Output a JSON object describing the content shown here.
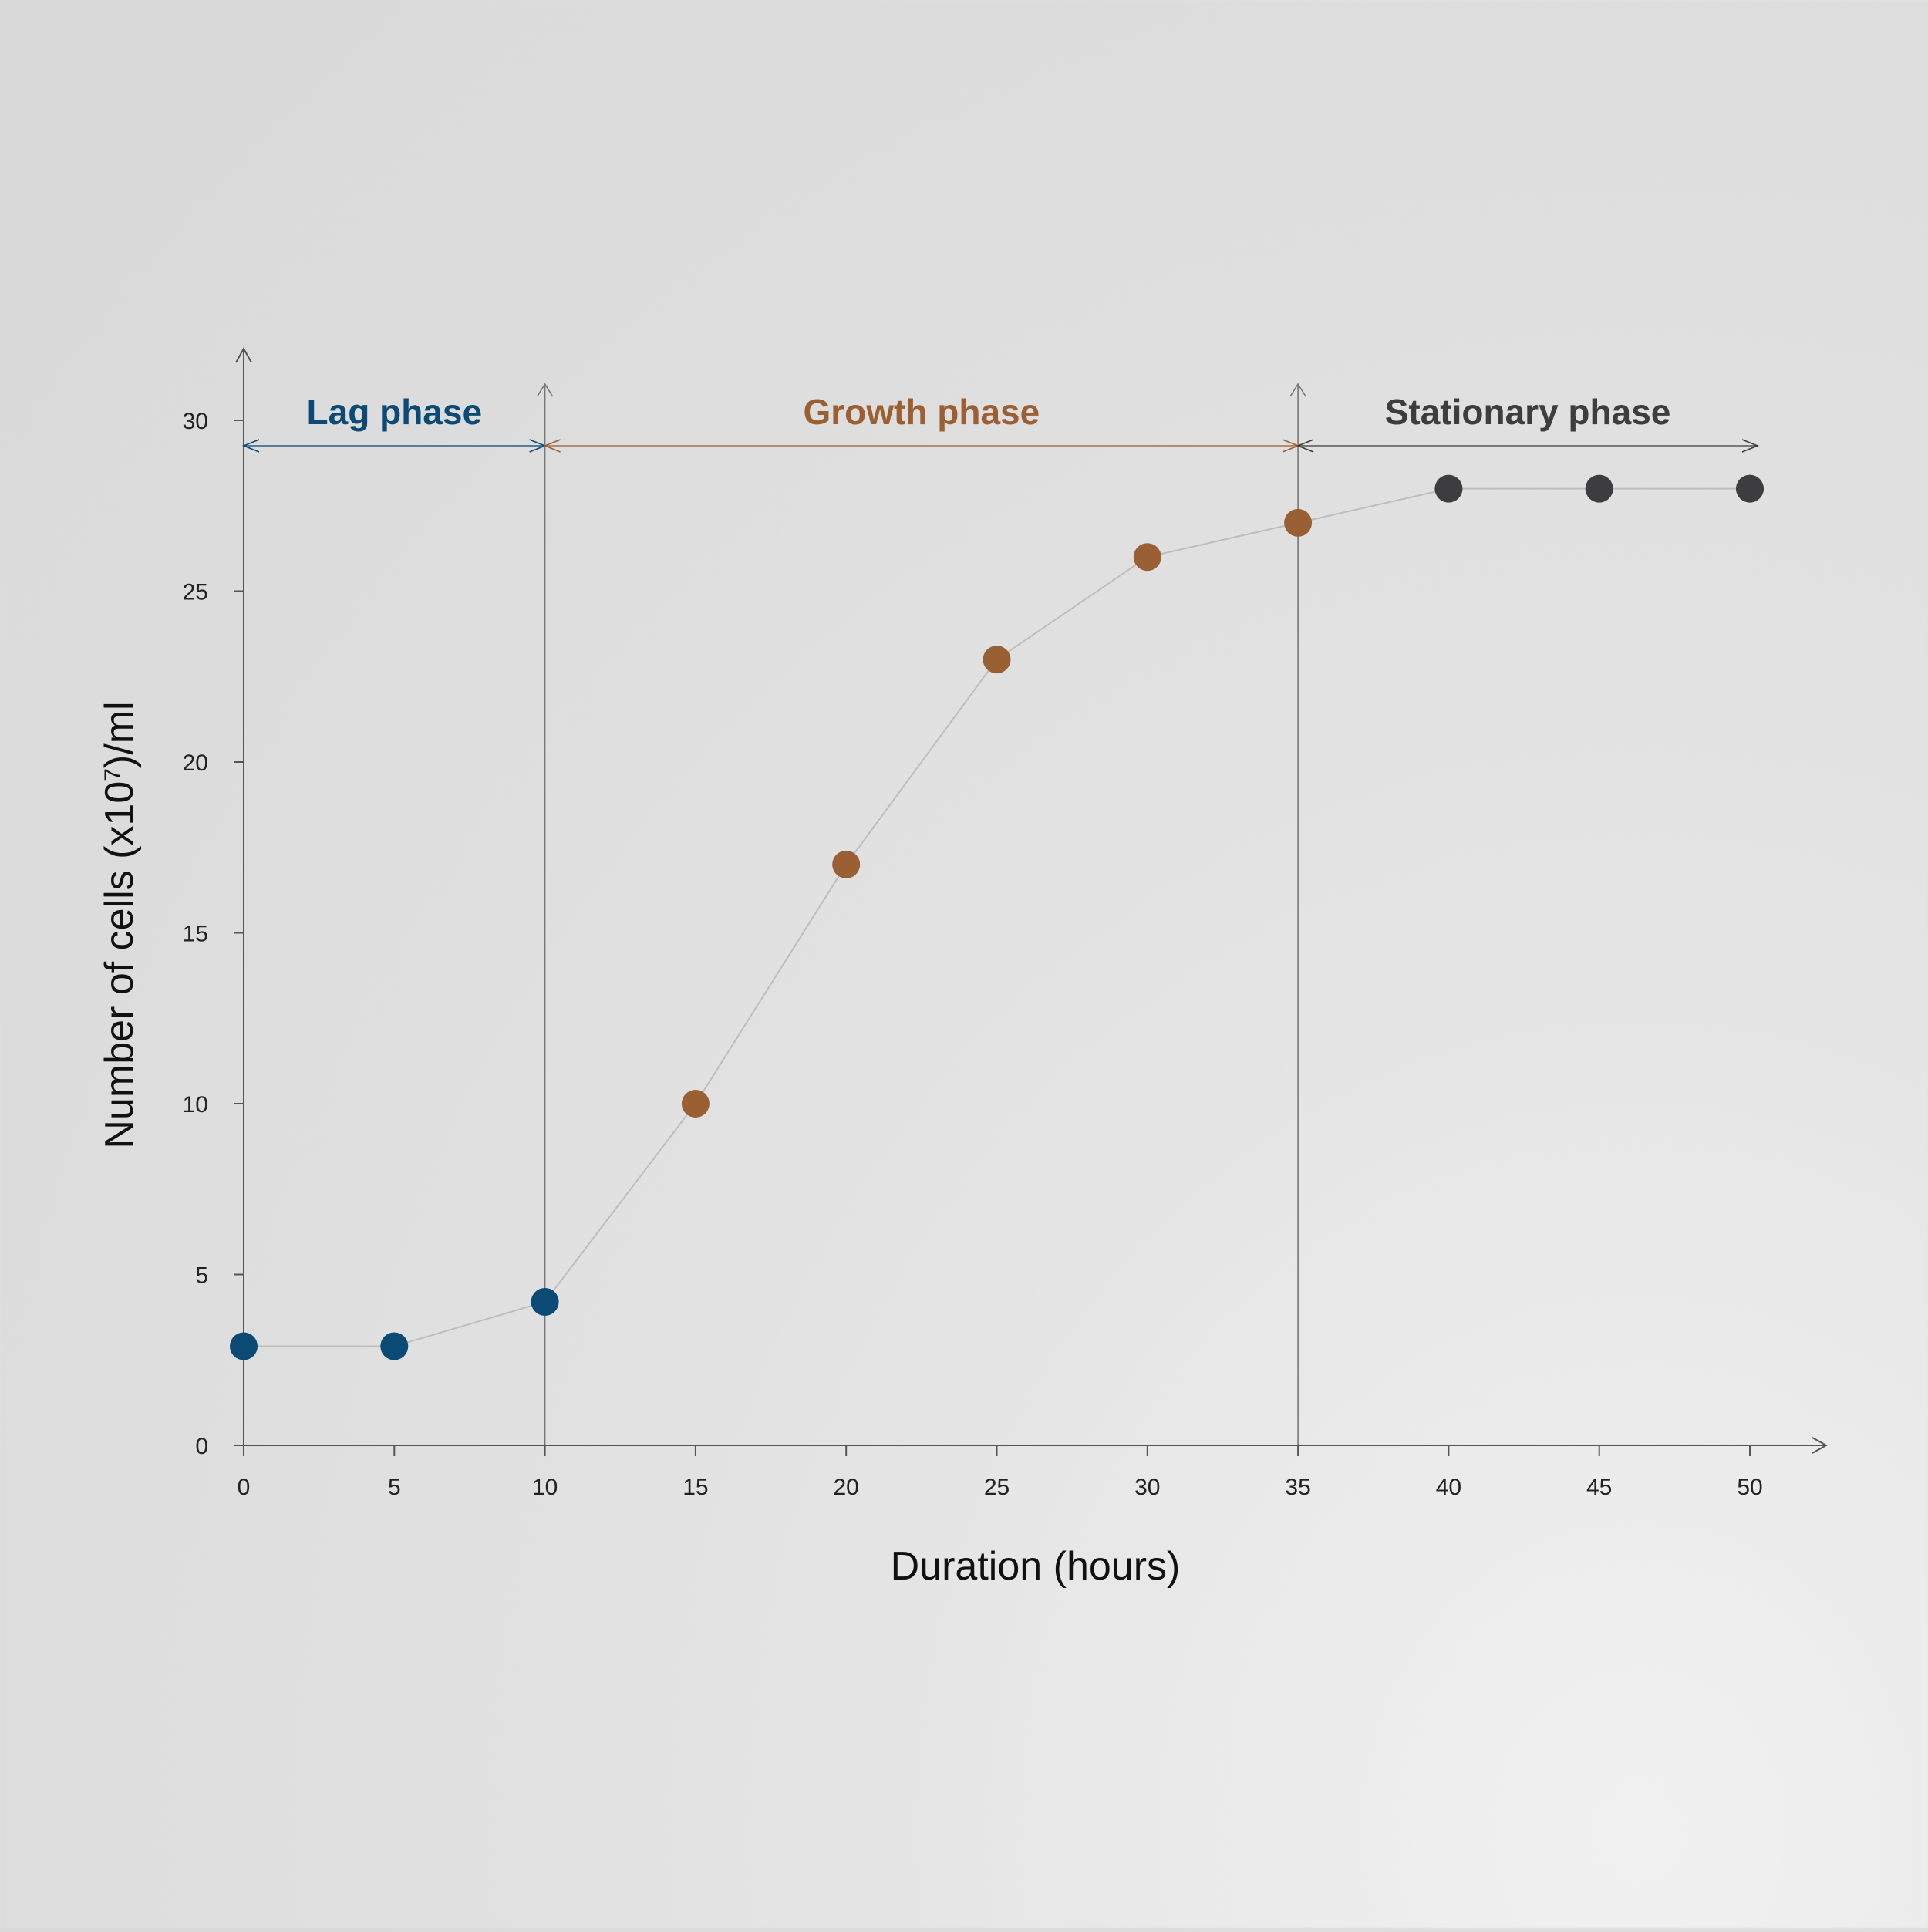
{
  "chart_data": {
    "type": "scatter",
    "xlabel": "Duration (hours)",
    "ylabel": {
      "prefix": "Number of cells (x10",
      "superscript": "7",
      "suffix": ")/ml"
    },
    "xlim": [
      0,
      50
    ],
    "ylim": [
      0,
      30
    ],
    "xticks": [
      0,
      5,
      10,
      15,
      20,
      25,
      30,
      35,
      40,
      45,
      50
    ],
    "yticks": [
      0,
      5,
      10,
      15,
      20,
      25,
      30
    ],
    "grid": false,
    "legend": "none",
    "connector_line": true,
    "phases": [
      {
        "label": "Lag phase",
        "x_start": 0,
        "x_end": 10,
        "color": "#0b4a74"
      },
      {
        "label": "Growth phase",
        "x_start": 10,
        "x_end": 35,
        "color": "#9a5f32"
      },
      {
        "label": "Stationary phase",
        "x_start": 35,
        "x_end": 50,
        "color": "#3d3d3f"
      }
    ],
    "series": [
      {
        "color": "#0b4a74",
        "points": [
          [
            0,
            2.9
          ],
          [
            5,
            2.9
          ],
          [
            10,
            4.2
          ]
        ]
      },
      {
        "color": "#9a5f32",
        "points": [
          [
            15,
            10
          ],
          [
            20,
            17
          ],
          [
            25,
            23
          ],
          [
            30,
            26
          ],
          [
            35,
            27
          ]
        ]
      },
      {
        "color": "#3d3d3f",
        "points": [
          [
            40,
            28
          ],
          [
            45,
            28
          ],
          [
            50,
            28
          ]
        ]
      }
    ]
  }
}
